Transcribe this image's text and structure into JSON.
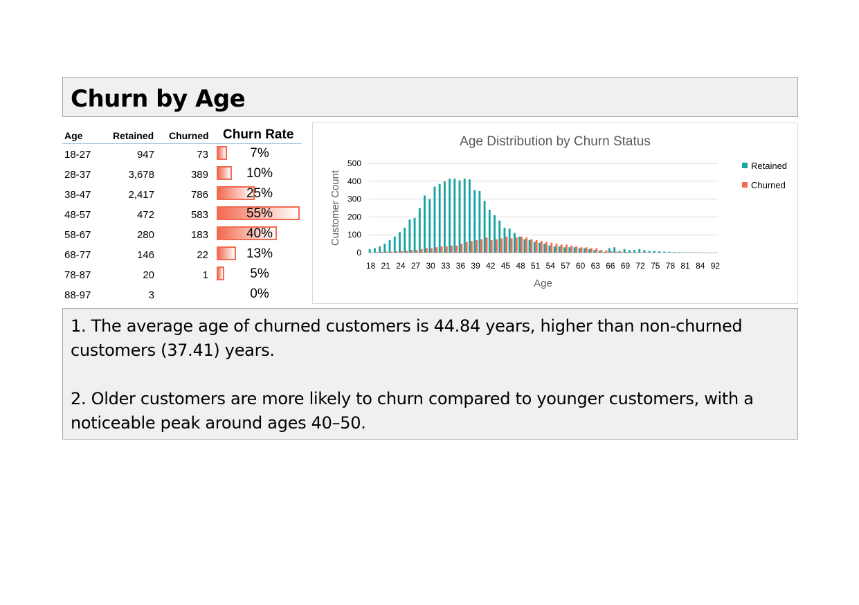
{
  "title": "Churn by Age",
  "table": {
    "headers": {
      "age": "Age",
      "retained": "Retained",
      "churned": "Churned",
      "churn_rate": "Churn Rate"
    },
    "rows": [
      {
        "age": "18-27",
        "retained": "947",
        "churned": "73",
        "rate_label": "7%",
        "rate": 0.07
      },
      {
        "age": "28-37",
        "retained": "3,678",
        "churned": "389",
        "rate_label": "10%",
        "rate": 0.1
      },
      {
        "age": "38-47",
        "retained": "2,417",
        "churned": "786",
        "rate_label": "25%",
        "rate": 0.25
      },
      {
        "age": "48-57",
        "retained": "472",
        "churned": "583",
        "rate_label": "55%",
        "rate": 0.55
      },
      {
        "age": "58-67",
        "retained": "280",
        "churned": "183",
        "rate_label": "40%",
        "rate": 0.4
      },
      {
        "age": "68-77",
        "retained": "146",
        "churned": "22",
        "rate_label": "13%",
        "rate": 0.13
      },
      {
        "age": "78-87",
        "retained": "20",
        "churned": "1",
        "rate_label": "5%",
        "rate": 0.05
      },
      {
        "age": "88-97",
        "retained": "3",
        "churned": "",
        "rate_label": "0%",
        "rate": 0.0
      }
    ]
  },
  "colors": {
    "retained": "#1aa3a3",
    "churned": "#f26a4f",
    "rate_bar": "#f26a4f"
  },
  "chart_data": {
    "type": "bar",
    "title": "Age Distribution by Churn Status",
    "xlabel": "Age",
    "ylabel": "Customer Count",
    "ylim": [
      0,
      500
    ],
    "yticks": [
      0,
      100,
      200,
      300,
      400,
      500
    ],
    "xtick_labels": [
      "18",
      "21",
      "24",
      "27",
      "30",
      "33",
      "36",
      "39",
      "42",
      "45",
      "48",
      "51",
      "54",
      "57",
      "60",
      "63",
      "66",
      "69",
      "72",
      "75",
      "78",
      "81",
      "84",
      "92"
    ],
    "legend_position": "right",
    "grid": true,
    "categories": [
      18,
      19,
      20,
      21,
      22,
      23,
      24,
      25,
      26,
      27,
      28,
      29,
      30,
      31,
      32,
      33,
      34,
      35,
      36,
      37,
      38,
      39,
      40,
      41,
      42,
      43,
      44,
      45,
      46,
      47,
      48,
      49,
      50,
      51,
      52,
      53,
      54,
      55,
      56,
      57,
      58,
      59,
      60,
      61,
      62,
      63,
      64,
      65,
      66,
      67,
      68,
      69,
      70,
      71,
      72,
      73,
      74,
      75,
      76,
      77,
      78,
      79,
      80,
      81,
      82,
      83,
      84,
      85,
      88,
      92
    ],
    "series": [
      {
        "name": "Retained",
        "values": [
          20,
          25,
          35,
          50,
          70,
          90,
          115,
          140,
          185,
          195,
          250,
          320,
          300,
          370,
          385,
          400,
          415,
          415,
          405,
          415,
          410,
          350,
          345,
          290,
          240,
          210,
          180,
          140,
          135,
          110,
          90,
          75,
          70,
          60,
          55,
          50,
          40,
          35,
          35,
          30,
          30,
          30,
          25,
          25,
          20,
          15,
          10,
          5,
          25,
          30,
          10,
          20,
          15,
          15,
          20,
          15,
          10,
          10,
          8,
          6,
          5,
          3,
          3,
          2,
          1,
          1,
          1,
          0,
          0,
          0
        ]
      },
      {
        "name": "Churned",
        "values": [
          2,
          3,
          5,
          6,
          5,
          8,
          10,
          10,
          15,
          15,
          20,
          25,
          25,
          30,
          35,
          35,
          40,
          40,
          50,
          60,
          65,
          70,
          75,
          85,
          70,
          75,
          80,
          90,
          80,
          85,
          90,
          85,
          75,
          70,
          65,
          60,
          55,
          50,
          45,
          45,
          40,
          35,
          30,
          30,
          25,
          25,
          15,
          12,
          8,
          6,
          5,
          4,
          3,
          2,
          2,
          1,
          1,
          0,
          0,
          0,
          0,
          0,
          0,
          0,
          0,
          0,
          0,
          0,
          0,
          0
        ]
      }
    ]
  },
  "notes": {
    "point1": "1. The average age of churned customers is 44.84 years, higher than non-churned customers (37.41) years.",
    "point2": "2. Older customers are more likely to churn compared to younger customers, with a noticeable peak around ages 40–50."
  }
}
